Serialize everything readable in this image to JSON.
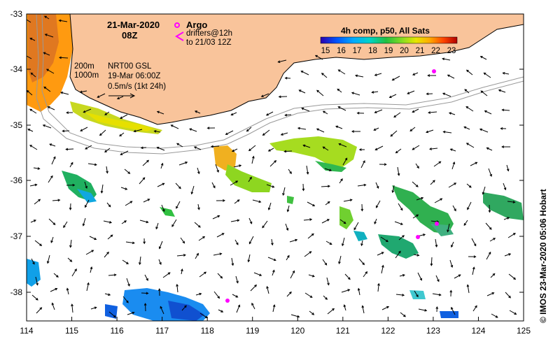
{
  "map": {
    "date_label": "21-Mar-2020",
    "time_label": "08Z",
    "argo_label": "Argo",
    "drifters_label_1": "drifters@12h",
    "drifters_label_2": "to 21/03 12Z",
    "isobath_200": "200m",
    "isobath_1000": "1000m",
    "product_1": "NRT00 GSL",
    "product_2": "19-Mar 06:00Z",
    "scale_label": "0.5m/s (1kt 24h)",
    "colorbar_title": "4h comp, p50, All Sats",
    "colorbar_ticks": [
      "15",
      "16",
      "17",
      "18",
      "19",
      "20",
      "21",
      "22",
      "23"
    ],
    "credit": "© IMOS 23-Mar-2020 05:06 Hobart",
    "x_ticks": [
      "114",
      "115",
      "116",
      "117",
      "118",
      "119",
      "120",
      "121",
      "122",
      "123",
      "124",
      "125"
    ],
    "y_ticks": [
      "-33",
      "-34",
      "-35",
      "-36",
      "-37",
      "-38"
    ],
    "colors": {
      "land": "#f9c49b",
      "argo": "#ff00ff",
      "colorbar": [
        "#2b00ae",
        "#0055ff",
        "#00aaff",
        "#00d4c8",
        "#22c040",
        "#88dd22",
        "#e6e600",
        "#ffaa00",
        "#ff4400",
        "#b00000"
      ]
    }
  }
}
